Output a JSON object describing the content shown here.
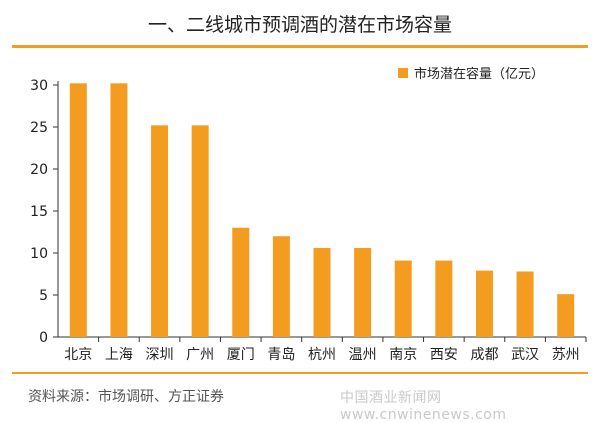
{
  "title": "一、二线城市预调酒的潜在市场容量",
  "source": "资料来源：市场调研、方正证券",
  "watermark": "中国酒业新闻网 www.cnwinenews.com",
  "colors": {
    "bar": "#f39c1f",
    "accent": "#f39c1f",
    "axis": "#333333"
  },
  "chart_data": {
    "type": "bar",
    "title": "一、二线城市预调酒的潜在市场容量",
    "xlabel": "",
    "ylabel": "",
    "ylim": [
      0,
      30
    ],
    "yticks": [
      0,
      5,
      10,
      15,
      20,
      25,
      30
    ],
    "grid": false,
    "legend_position": "top-right",
    "categories": [
      "北京",
      "上海",
      "深圳",
      "广州",
      "厦门",
      "青岛",
      "杭州",
      "温州",
      "南京",
      "西安",
      "成都",
      "武汉",
      "苏州"
    ],
    "series": [
      {
        "name": "市场潜在容量（亿元）",
        "values": [
          30.2,
          30.2,
          25.2,
          25.2,
          13,
          12,
          10.6,
          10.6,
          9.1,
          9.1,
          7.9,
          7.8,
          5.1
        ]
      }
    ]
  }
}
